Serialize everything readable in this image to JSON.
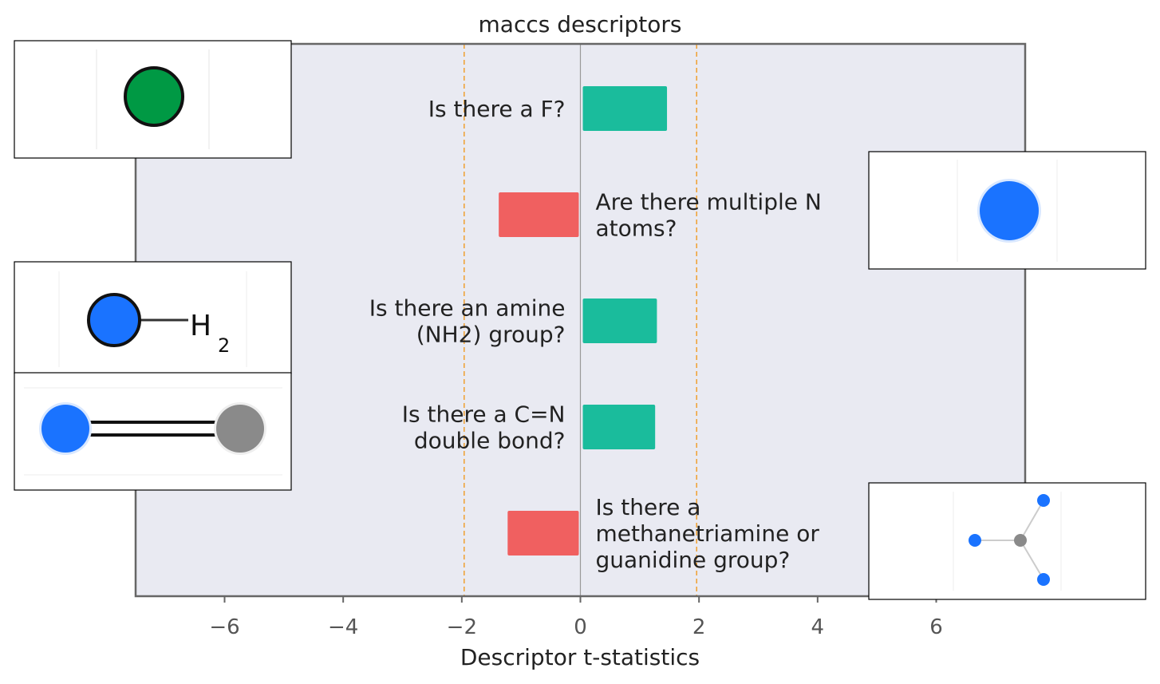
{
  "chart_data": {
    "type": "bar",
    "orientation": "horizontal",
    "title": "maccs descriptors",
    "xlabel": "Descriptor t-statistics",
    "ylabel": "",
    "xlim": [
      -7.5,
      7.5
    ],
    "xticks": [
      -6,
      -4,
      -2,
      0,
      2,
      4,
      6
    ],
    "xtick_labels": [
      "−6",
      "−4",
      "−2",
      "0",
      "2",
      "4",
      "6"
    ],
    "threshold_lines": [
      -1.96,
      1.96
    ],
    "zero_line": 0,
    "grid": false,
    "categories": [
      "Is there a F?",
      "Are there multiple N atoms?",
      "Is there an amine (NH2) group?",
      "Is there a C=N double bond?",
      "Is there a methanetriamine or guanidine group?"
    ],
    "label_lines": [
      [
        "Is there a F?"
      ],
      [
        "Are there multiple N",
        "atoms?"
      ],
      [
        "Is there an amine",
        "(NH2) group?"
      ],
      [
        "Is there a C=N",
        "double bond?"
      ],
      [
        "Is there a",
        "methanetriamine or",
        "guanidine group?"
      ]
    ],
    "values": [
      1.42,
      -1.35,
      1.25,
      1.22,
      -1.2
    ],
    "colors": {
      "positive": "#1abc9c",
      "negative": "#f06060",
      "threshold": "#f0a030",
      "zero_line": "#999999",
      "plot_background": "#e9eaf2",
      "frame": "#666666"
    },
    "substructure_icons": [
      "fluorine-atom-icon",
      "nitrogen-atom-icon",
      "amine-nh2-icon",
      "carbon-nitrogen-double-bond-icon",
      "methanetriamine-icon"
    ],
    "icon_atom_labels": {
      "amine": [
        "H",
        "2"
      ]
    }
  }
}
